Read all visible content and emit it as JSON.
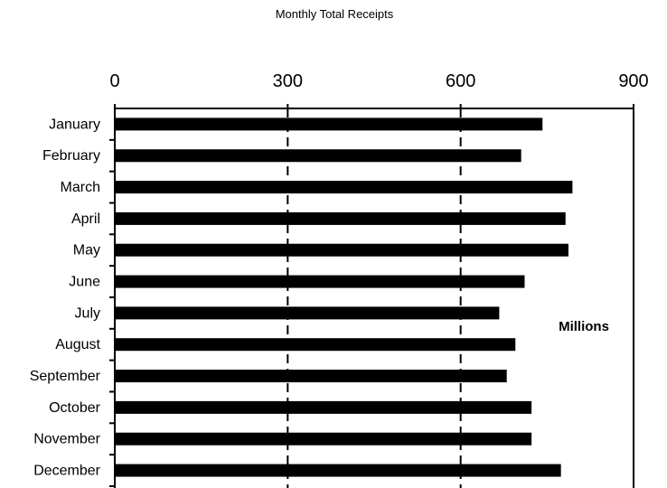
{
  "chart_data": {
    "type": "bar",
    "orientation": "horizontal",
    "title": "Monthly Total Receipts",
    "unit_label": "Millions",
    "categories": [
      "January",
      "February",
      "March",
      "April",
      "May",
      "June",
      "July",
      "August",
      "September",
      "October",
      "November",
      "December"
    ],
    "values": [
      742,
      705,
      794,
      782,
      787,
      711,
      667,
      695,
      680,
      723,
      723,
      774
    ],
    "xlim": [
      0,
      900
    ],
    "xticks": [
      0,
      300,
      600,
      900
    ],
    "xtick_labels": [
      "0",
      "300",
      "600",
      "900"
    ],
    "x_axis_position": "top",
    "grid": true,
    "bar_color": "#000000"
  }
}
